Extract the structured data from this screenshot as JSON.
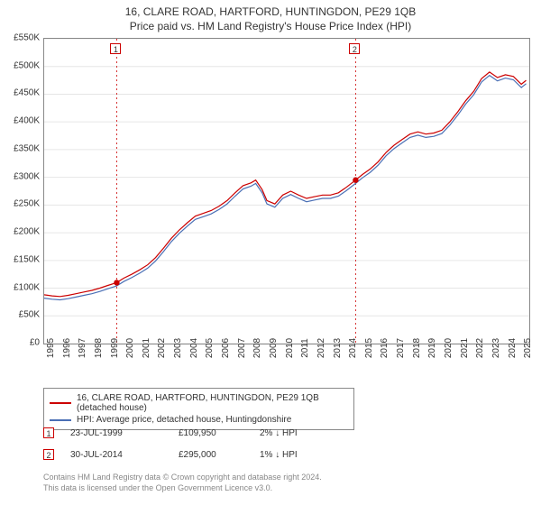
{
  "title": "16, CLARE ROAD, HARTFORD, HUNTINGDON, PE29 1QB",
  "subtitle": "Price paid vs. HM Land Registry's House Price Index (HPI)",
  "chart": {
    "type": "line",
    "background_color": "#ffffff",
    "border_color": "#888888",
    "grid_color": "#e6e6e6",
    "font_family": "Arial",
    "title_fontsize": 12,
    "axis_fontsize": 10,
    "x": {
      "min": 1995,
      "max": 2025.5,
      "ticks": [
        "1995",
        "1996",
        "1997",
        "1998",
        "1999",
        "2000",
        "2001",
        "2002",
        "2003",
        "2004",
        "2005",
        "2006",
        "2007",
        "2008",
        "2009",
        "2010",
        "2011",
        "2012",
        "2013",
        "2014",
        "2015",
        "2016",
        "2017",
        "2018",
        "2019",
        "2020",
        "2021",
        "2022",
        "2023",
        "2024",
        "2025"
      ],
      "label_rotation": -90
    },
    "y": {
      "min": 0,
      "max": 550000,
      "tick_step": 50000,
      "ticks": [
        "£0",
        "£50K",
        "£100K",
        "£150K",
        "£200K",
        "£250K",
        "£300K",
        "£350K",
        "£400K",
        "£450K",
        "£500K",
        "£550K"
      ]
    },
    "series": [
      {
        "name": "price_line",
        "label": "16, CLARE ROAD, HARTFORD, HUNTINGDON, PE29 1QB (detached house)",
        "color": "#cc0000",
        "line_width": 1.2,
        "points": [
          [
            1995.0,
            88000
          ],
          [
            1995.5,
            86000
          ],
          [
            1996.0,
            85000
          ],
          [
            1996.5,
            87000
          ],
          [
            1997.0,
            90000
          ],
          [
            1997.5,
            93000
          ],
          [
            1998.0,
            96000
          ],
          [
            1998.5,
            100000
          ],
          [
            1999.0,
            105000
          ],
          [
            1999.56,
            109950
          ],
          [
            2000.0,
            118000
          ],
          [
            2000.5,
            125000
          ],
          [
            2001.0,
            133000
          ],
          [
            2001.5,
            142000
          ],
          [
            2002.0,
            155000
          ],
          [
            2002.5,
            172000
          ],
          [
            2003.0,
            190000
          ],
          [
            2003.5,
            205000
          ],
          [
            2004.0,
            218000
          ],
          [
            2004.5,
            230000
          ],
          [
            2005.0,
            235000
          ],
          [
            2005.5,
            240000
          ],
          [
            2006.0,
            248000
          ],
          [
            2006.5,
            258000
          ],
          [
            2007.0,
            272000
          ],
          [
            2007.5,
            285000
          ],
          [
            2008.0,
            290000
          ],
          [
            2008.3,
            295000
          ],
          [
            2008.7,
            278000
          ],
          [
            2009.0,
            258000
          ],
          [
            2009.5,
            252000
          ],
          [
            2010.0,
            268000
          ],
          [
            2010.5,
            275000
          ],
          [
            2011.0,
            268000
          ],
          [
            2011.5,
            262000
          ],
          [
            2012.0,
            265000
          ],
          [
            2012.5,
            268000
          ],
          [
            2013.0,
            268000
          ],
          [
            2013.5,
            272000
          ],
          [
            2014.0,
            282000
          ],
          [
            2014.58,
            295000
          ],
          [
            2015.0,
            305000
          ],
          [
            2015.5,
            315000
          ],
          [
            2016.0,
            328000
          ],
          [
            2016.5,
            345000
          ],
          [
            2017.0,
            358000
          ],
          [
            2017.5,
            368000
          ],
          [
            2018.0,
            378000
          ],
          [
            2018.5,
            382000
          ],
          [
            2019.0,
            378000
          ],
          [
            2019.5,
            380000
          ],
          [
            2020.0,
            385000
          ],
          [
            2020.5,
            400000
          ],
          [
            2021.0,
            418000
          ],
          [
            2021.5,
            438000
          ],
          [
            2022.0,
            455000
          ],
          [
            2022.5,
            478000
          ],
          [
            2023.0,
            490000
          ],
          [
            2023.5,
            480000
          ],
          [
            2024.0,
            485000
          ],
          [
            2024.5,
            482000
          ],
          [
            2025.0,
            468000
          ],
          [
            2025.3,
            475000
          ]
        ]
      },
      {
        "name": "hpi_line",
        "label": "HPI: Average price, detached house, Huntingdonshire",
        "color": "#4a6fb5",
        "line_width": 1.2,
        "points_offset_from": "price_line",
        "offset_y": -6000
      }
    ],
    "event_lines": [
      {
        "x": 1999.56,
        "color": "#cc0000",
        "dash": "2,3",
        "label": "1"
      },
      {
        "x": 2014.58,
        "color": "#cc0000",
        "dash": "2,3",
        "label": "2"
      }
    ],
    "event_markers": [
      {
        "x": 1999.56,
        "y": 109950,
        "color": "#cc0000",
        "radius": 3.2
      },
      {
        "x": 2014.58,
        "y": 295000,
        "color": "#cc0000",
        "radius": 3.2
      }
    ]
  },
  "legend": {
    "border_color": "#888888",
    "items": [
      {
        "color": "#cc0000",
        "label": "16, CLARE ROAD, HARTFORD, HUNTINGDON, PE29 1QB (detached house)"
      },
      {
        "color": "#4a6fb5",
        "label": "HPI: Average price, detached house, Huntingdonshire"
      }
    ]
  },
  "sales": [
    {
      "marker": "1",
      "date": "23-JUL-1999",
      "price": "£109,950",
      "diff": "2% ↓ HPI"
    },
    {
      "marker": "2",
      "date": "30-JUL-2014",
      "price": "£295,000",
      "diff": "1% ↓ HPI"
    }
  ],
  "footer": {
    "line1": "Contains HM Land Registry data © Crown copyright and database right 2024.",
    "line2": "This data is licensed under the Open Government Licence v3.0."
  }
}
